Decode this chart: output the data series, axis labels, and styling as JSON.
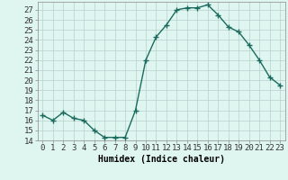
{
  "x": [
    0,
    1,
    2,
    3,
    4,
    5,
    6,
    7,
    8,
    9,
    10,
    11,
    12,
    13,
    14,
    15,
    16,
    17,
    18,
    19,
    20,
    21,
    22,
    23
  ],
  "y": [
    16.5,
    16.0,
    16.8,
    16.2,
    16.0,
    15.0,
    14.3,
    14.3,
    14.3,
    17.0,
    22.0,
    24.3,
    25.5,
    27.0,
    27.2,
    27.2,
    27.5,
    26.5,
    25.3,
    24.8,
    23.5,
    22.0,
    20.3,
    19.5
  ],
  "line_color": "#1a6b5e",
  "marker": "+",
  "marker_size": 4,
  "marker_lw": 1.0,
  "line_width": 1.0,
  "bg_color": "#dff5f0",
  "grid_color": "#b8d0cc",
  "xlabel": "Humidex (Indice chaleur)",
  "xlim": [
    -0.5,
    23.5
  ],
  "ylim": [
    14,
    27.8
  ],
  "yticks": [
    14,
    15,
    16,
    17,
    18,
    19,
    20,
    21,
    22,
    23,
    24,
    25,
    26,
    27
  ],
  "xtick_labels": [
    "0",
    "1",
    "2",
    "3",
    "4",
    "5",
    "6",
    "7",
    "8",
    "9",
    "10",
    "11",
    "12",
    "13",
    "14",
    "15",
    "16",
    "17",
    "18",
    "19",
    "20",
    "21",
    "22",
    "23"
  ],
  "xlabel_fontsize": 7,
  "tick_fontsize": 6.5
}
